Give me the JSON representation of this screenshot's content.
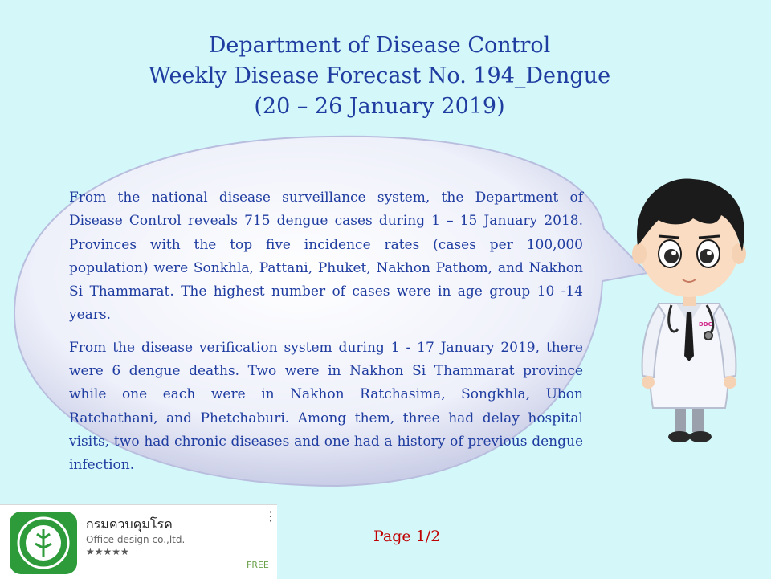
{
  "header": {
    "line1": "Department of Disease Control",
    "line2": "Weekly Disease Forecast No. 194_Dengue",
    "line3": "(20 – 26 January 2019)"
  },
  "body": {
    "paragraph1": "From the national disease surveillance system, the Department of Disease Control reveals 715 dengue cases during 1 – 15 January 2018. Provinces with the top five incidence rates (cases per 100,000 population) were Sonkhla, Pattani, Phuket, Nakhon Pathom, and Nakhon Si Thammarat. The highest number of cases were in age group 10 -14 years.",
    "paragraph2": "From the disease verification system during 1 - 17 January 2019, there were 6 dengue deaths. Two were in Nakhon Si Thammarat province while one each were in Nakhon Ratchasima, Songkhla, Ubon Ratchathani, and Phetchaburi. Among them, three had delay hospital  visits, two had chronic diseases and one had a history of previous dengue infection."
  },
  "doctor": {
    "badge": "DDC"
  },
  "app_card": {
    "name": "กรมควบคุมโรค",
    "developer": "Office design co.,ltd.",
    "stars": "★★★★★",
    "menu": "⋮",
    "price": "FREE"
  },
  "footer": {
    "page": "Page 1/2"
  },
  "colors": {
    "background": "#d4f7f9",
    "title_text": "#1f3ca0",
    "page_number": "#c00000",
    "app_icon_green": "#2e9b3a"
  }
}
